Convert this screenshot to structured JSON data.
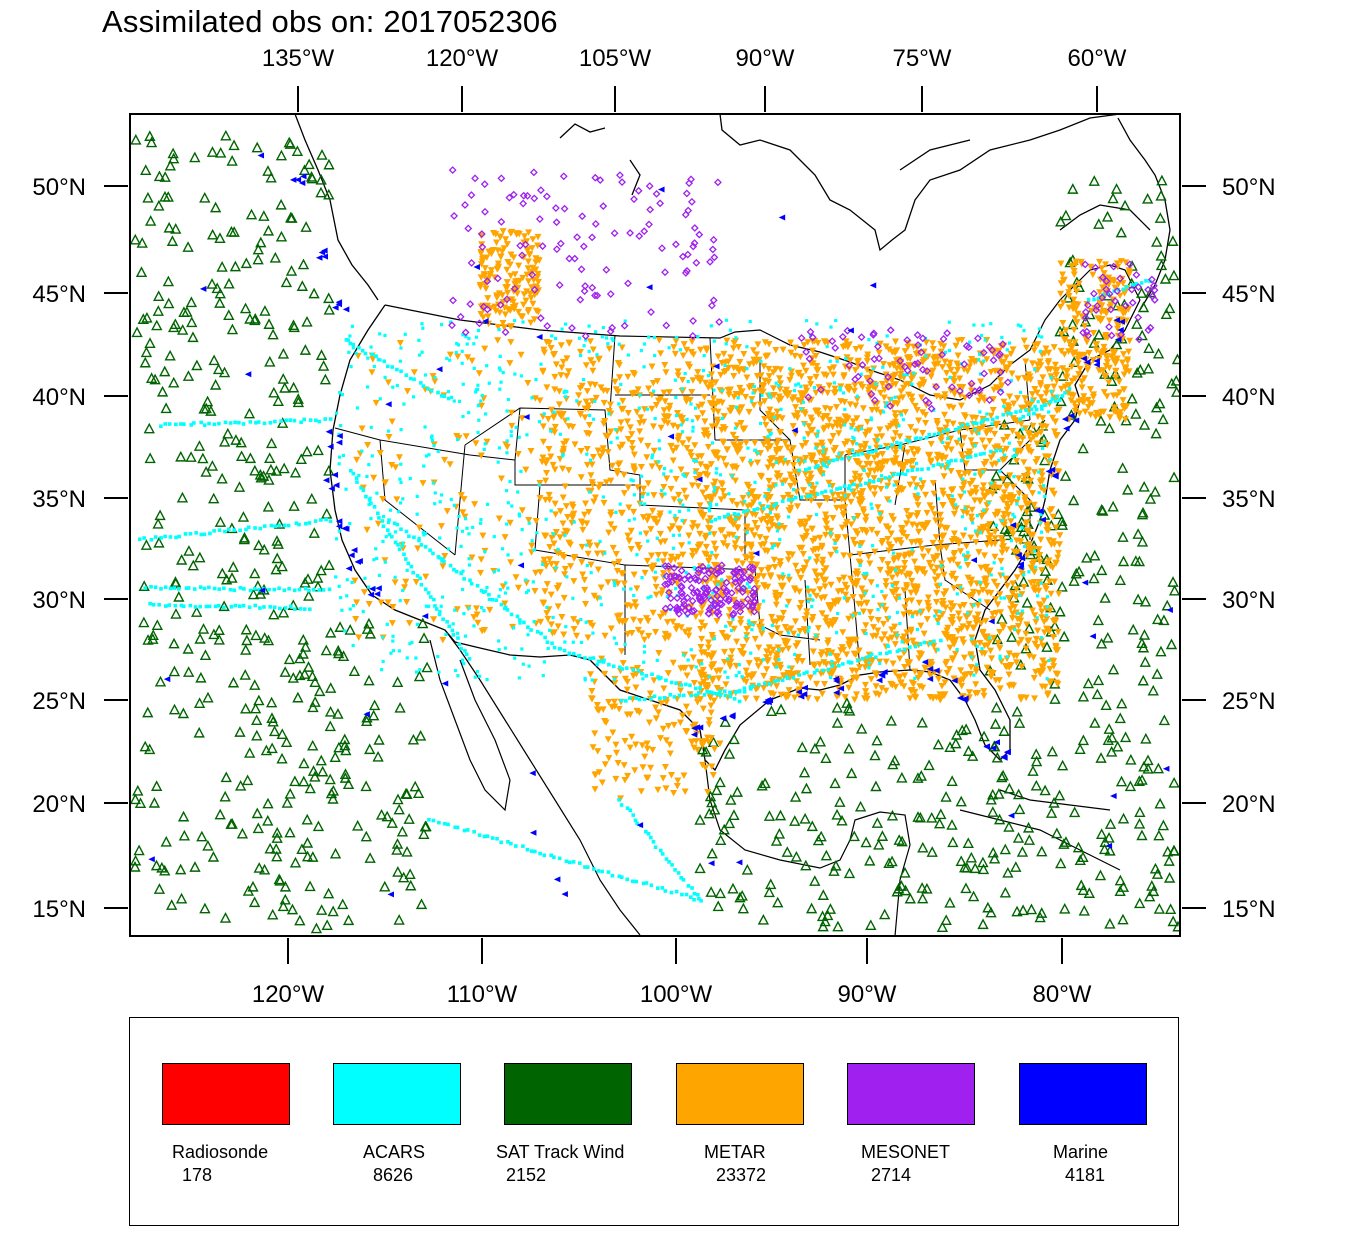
{
  "title": "Assimilated obs on: 2017052306",
  "axes": {
    "top_lon_labels": [
      "135°W",
      "120°W",
      "105°W",
      "90°W",
      "75°W",
      "60°W"
    ],
    "bottom_lon_labels": [
      "120°W",
      "110°W",
      "100°W",
      "90°W",
      "80°W"
    ],
    "lat_labels": [
      "50°N",
      "45°N",
      "40°N",
      "35°N",
      "30°N",
      "25°N",
      "20°N",
      "15°N"
    ]
  },
  "legend": [
    {
      "label": "Radiosonde",
      "count": "178",
      "color": "#ff0000"
    },
    {
      "label": "ACARS",
      "count": "8626",
      "color": "#00ffff"
    },
    {
      "label": "SAT Track Wind",
      "count": "2152",
      "color": "#006400"
    },
    {
      "label": "METAR",
      "count": "23372",
      "color": "#ffa500"
    },
    {
      "label": "MESONET",
      "count": "2714",
      "color": "#a020f0"
    },
    {
      "label": "Marine",
      "count": "4181",
      "color": "#0000ff"
    }
  ]
}
